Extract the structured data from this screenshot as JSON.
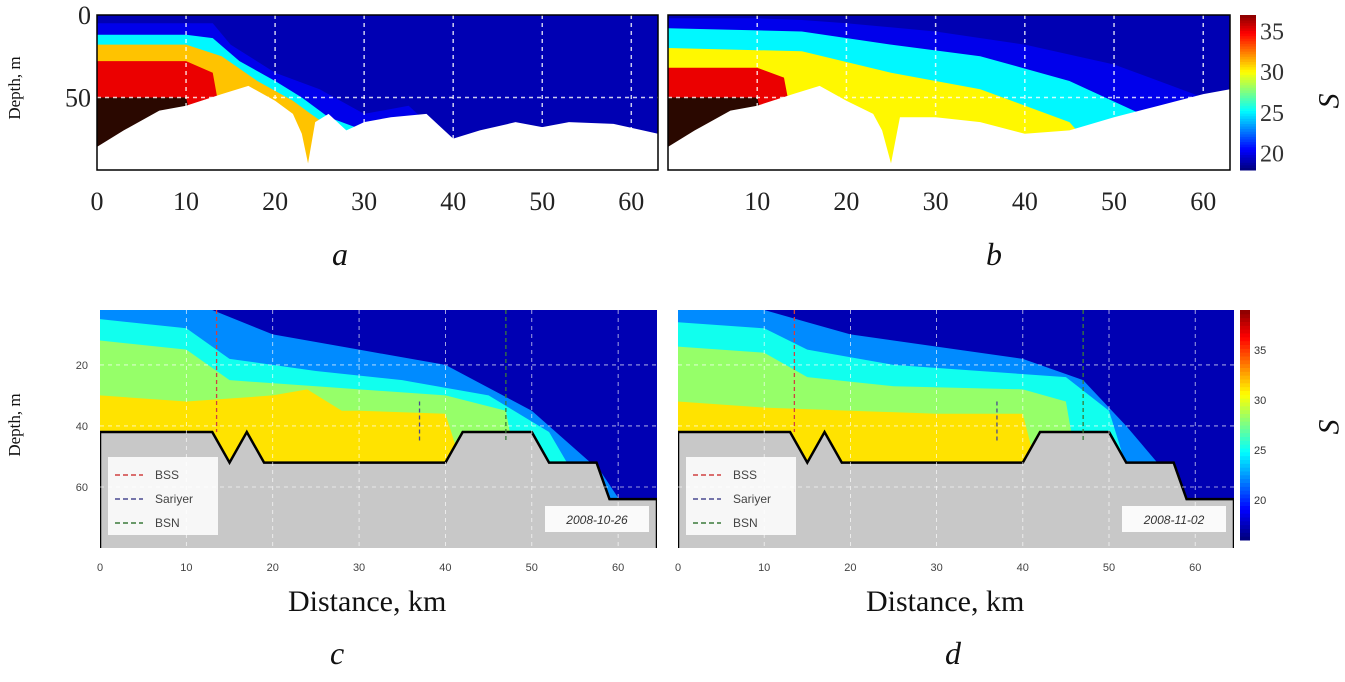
{
  "chart_data": [
    {
      "id": "a",
      "type": "heatmap",
      "panel_label": "a",
      "ylabel": "Depth, m",
      "xlim": [
        0,
        63
      ],
      "ylim": [
        0,
        94
      ],
      "xticks": [
        "0",
        "10",
        "20",
        "30",
        "40",
        "50",
        "60"
      ],
      "yticks": [
        "0",
        "50"
      ],
      "levels": [
        {
          "S": 20,
          "x": [
            0,
            10,
            13,
            15,
            20,
            25,
            30,
            35,
            38,
            40
          ],
          "d": [
            5,
            5,
            5,
            18,
            35,
            45,
            60,
            55,
            70,
            200
          ]
        },
        {
          "S": 25,
          "x": [
            0,
            10,
            13,
            16,
            20,
            23,
            26,
            30,
            33
          ],
          "d": [
            12,
            12,
            14,
            28,
            40,
            50,
            62,
            70,
            200
          ]
        },
        {
          "S": 31,
          "x": [
            0,
            10,
            14,
            18,
            22,
            24,
            28,
            31
          ],
          "d": [
            18,
            18,
            25,
            40,
            52,
            60,
            75,
            200
          ]
        },
        {
          "S": 35,
          "x": [
            0,
            10,
            13,
            15
          ],
          "d": [
            28,
            28,
            35,
            200
          ]
        },
        {
          "S": 38,
          "x": [
            0,
            10,
            12
          ],
          "d": [
            50,
            50,
            200
          ]
        }
      ],
      "bottom": {
        "x": [
          0,
          3,
          7,
          10,
          14,
          17,
          20,
          22,
          23,
          23.7,
          24.5,
          26,
          28,
          30,
          33,
          37,
          40,
          43,
          47,
          50,
          53,
          58,
          63
        ],
        "d": [
          80,
          70,
          58,
          55,
          48,
          43,
          52,
          60,
          72,
          90,
          65,
          60,
          70,
          65,
          62,
          60,
          75,
          70,
          65,
          68,
          65,
          66,
          72
        ]
      }
    },
    {
      "id": "b",
      "type": "heatmap",
      "panel_label": "b",
      "xlim": [
        0,
        63
      ],
      "ylim": [
        0,
        94
      ],
      "xticks": [
        "10",
        "20",
        "30",
        "40",
        "50",
        "60"
      ],
      "levels": [
        {
          "S": 20,
          "x": [
            0,
            10,
            15,
            20,
            30,
            40,
            50,
            60,
            63
          ],
          "d": [
            2,
            2,
            3,
            5,
            10,
            18,
            30,
            50,
            60
          ]
        },
        {
          "S": 25,
          "x": [
            0,
            15,
            25,
            35,
            45,
            55,
            60
          ],
          "d": [
            8,
            10,
            18,
            25,
            40,
            65,
            200
          ]
        },
        {
          "S": 30,
          "x": [
            0,
            15,
            25,
            35,
            45,
            50
          ],
          "d": [
            20,
            22,
            35,
            45,
            65,
            200
          ]
        },
        {
          "S": 35,
          "x": [
            0,
            10,
            13,
            15
          ],
          "d": [
            32,
            32,
            38,
            200
          ]
        },
        {
          "S": 38,
          "x": [
            0,
            10,
            12
          ],
          "d": [
            50,
            50,
            200
          ]
        }
      ],
      "bottom": {
        "x": [
          0,
          3,
          7,
          10,
          14,
          17,
          20,
          23,
          24,
          25,
          26,
          30,
          35,
          40,
          45,
          50,
          55,
          60,
          63
        ],
        "d": [
          80,
          70,
          58,
          55,
          48,
          43,
          52,
          60,
          70,
          90,
          62,
          62,
          65,
          72,
          70,
          62,
          55,
          48,
          45
        ]
      }
    },
    {
      "id": "c",
      "type": "heatmap",
      "panel_label": "c",
      "xlabel": "Distance, km",
      "ylabel": "Depth, m",
      "xlim": [
        0,
        64.5
      ],
      "ylim": [
        2,
        80
      ],
      "xticks": [
        "0",
        "10",
        "20",
        "30",
        "40",
        "50",
        "60"
      ],
      "yticks": [
        "20",
        "40",
        "60"
      ],
      "date": "2008-10-26",
      "levels": [
        {
          "S": 22,
          "x": [
            0,
            13,
            20,
            30,
            40,
            50,
            58,
            64
          ],
          "d": [
            2,
            2,
            10,
            15,
            20,
            35,
            55,
            200
          ]
        },
        {
          "S": 25,
          "x": [
            0,
            10,
            15,
            25,
            35,
            45,
            52,
            60
          ],
          "d": [
            5,
            8,
            18,
            22,
            25,
            30,
            42,
            200
          ]
        },
        {
          "S": 28,
          "x": [
            0,
            10,
            15,
            25,
            40,
            47,
            50
          ],
          "d": [
            12,
            15,
            25,
            27,
            30,
            35,
            200
          ]
        },
        {
          "S": 31,
          "x": [
            0,
            10,
            20,
            24,
            28,
            30,
            40,
            45
          ],
          "d": [
            30,
            32,
            30,
            28,
            35,
            35,
            36,
            200
          ]
        }
      ],
      "bottom": {
        "x": [
          0,
          13,
          15,
          17,
          19,
          40,
          42,
          50,
          52,
          57.5,
          59,
          64.5
        ],
        "d": [
          42,
          42,
          52,
          42,
          52,
          52,
          42,
          42,
          52,
          52,
          64,
          64
        ]
      },
      "stations": [
        {
          "name": "BSS",
          "x": 13.5,
          "d": [
            2,
            42
          ],
          "color": "#d04040"
        },
        {
          "name": "Sariyer",
          "x": 37,
          "d": [
            32,
            45
          ],
          "color": "#4a4a90"
        },
        {
          "name": "BSN",
          "x": 47,
          "d": [
            2,
            45
          ],
          "color": "#3a7a3a"
        }
      ]
    },
    {
      "id": "d",
      "type": "heatmap",
      "panel_label": "d",
      "xlabel": "Distance, km",
      "xlim": [
        0,
        64.5
      ],
      "ylim": [
        2,
        80
      ],
      "xticks": [
        "0",
        "10",
        "20",
        "30",
        "40",
        "50",
        "60"
      ],
      "date": "2008-11-02",
      "levels": [
        {
          "S": 22,
          "x": [
            0,
            10,
            15,
            20,
            30,
            40,
            47,
            52,
            58,
            64
          ],
          "d": [
            2,
            2,
            6,
            10,
            14,
            18,
            25,
            40,
            60,
            200
          ]
        },
        {
          "S": 25,
          "x": [
            0,
            10,
            15,
            25,
            35,
            45,
            50,
            55
          ],
          "d": [
            6,
            8,
            15,
            20,
            22,
            24,
            35,
            200
          ]
        },
        {
          "S": 28,
          "x": [
            0,
            10,
            15,
            25,
            40,
            45,
            48
          ],
          "d": [
            14,
            16,
            24,
            27,
            28,
            32,
            200
          ]
        },
        {
          "S": 31,
          "x": [
            0,
            10,
            20,
            30,
            40,
            44
          ],
          "d": [
            32,
            34,
            35,
            36,
            36,
            200
          ]
        }
      ],
      "bottom": {
        "x": [
          0,
          13,
          15,
          17,
          19,
          40,
          42,
          50,
          52,
          57.5,
          59,
          64.5
        ],
        "d": [
          42,
          42,
          52,
          42,
          52,
          52,
          42,
          42,
          52,
          52,
          64,
          64
        ]
      },
      "stations": [
        {
          "name": "BSS",
          "x": 13.5,
          "d": [
            2,
            42
          ],
          "color": "#d04040"
        },
        {
          "name": "Sariyer",
          "x": 37,
          "d": [
            32,
            45
          ],
          "color": "#4a4a90"
        },
        {
          "name": "BSN",
          "x": 47,
          "d": [
            2,
            45
          ],
          "color": "#3a7a3a"
        }
      ]
    }
  ],
  "colorbars": [
    {
      "id": "top",
      "ticks": [
        "35",
        "30",
        "25",
        "20"
      ],
      "range": [
        18,
        37
      ]
    },
    {
      "id": "bottom",
      "ticks": [
        "35",
        "30",
        "25",
        "20"
      ],
      "range": [
        16,
        39
      ]
    }
  ],
  "cbar_label": "S",
  "legend": [
    "BSS",
    "Sariyer",
    "BSN"
  ]
}
